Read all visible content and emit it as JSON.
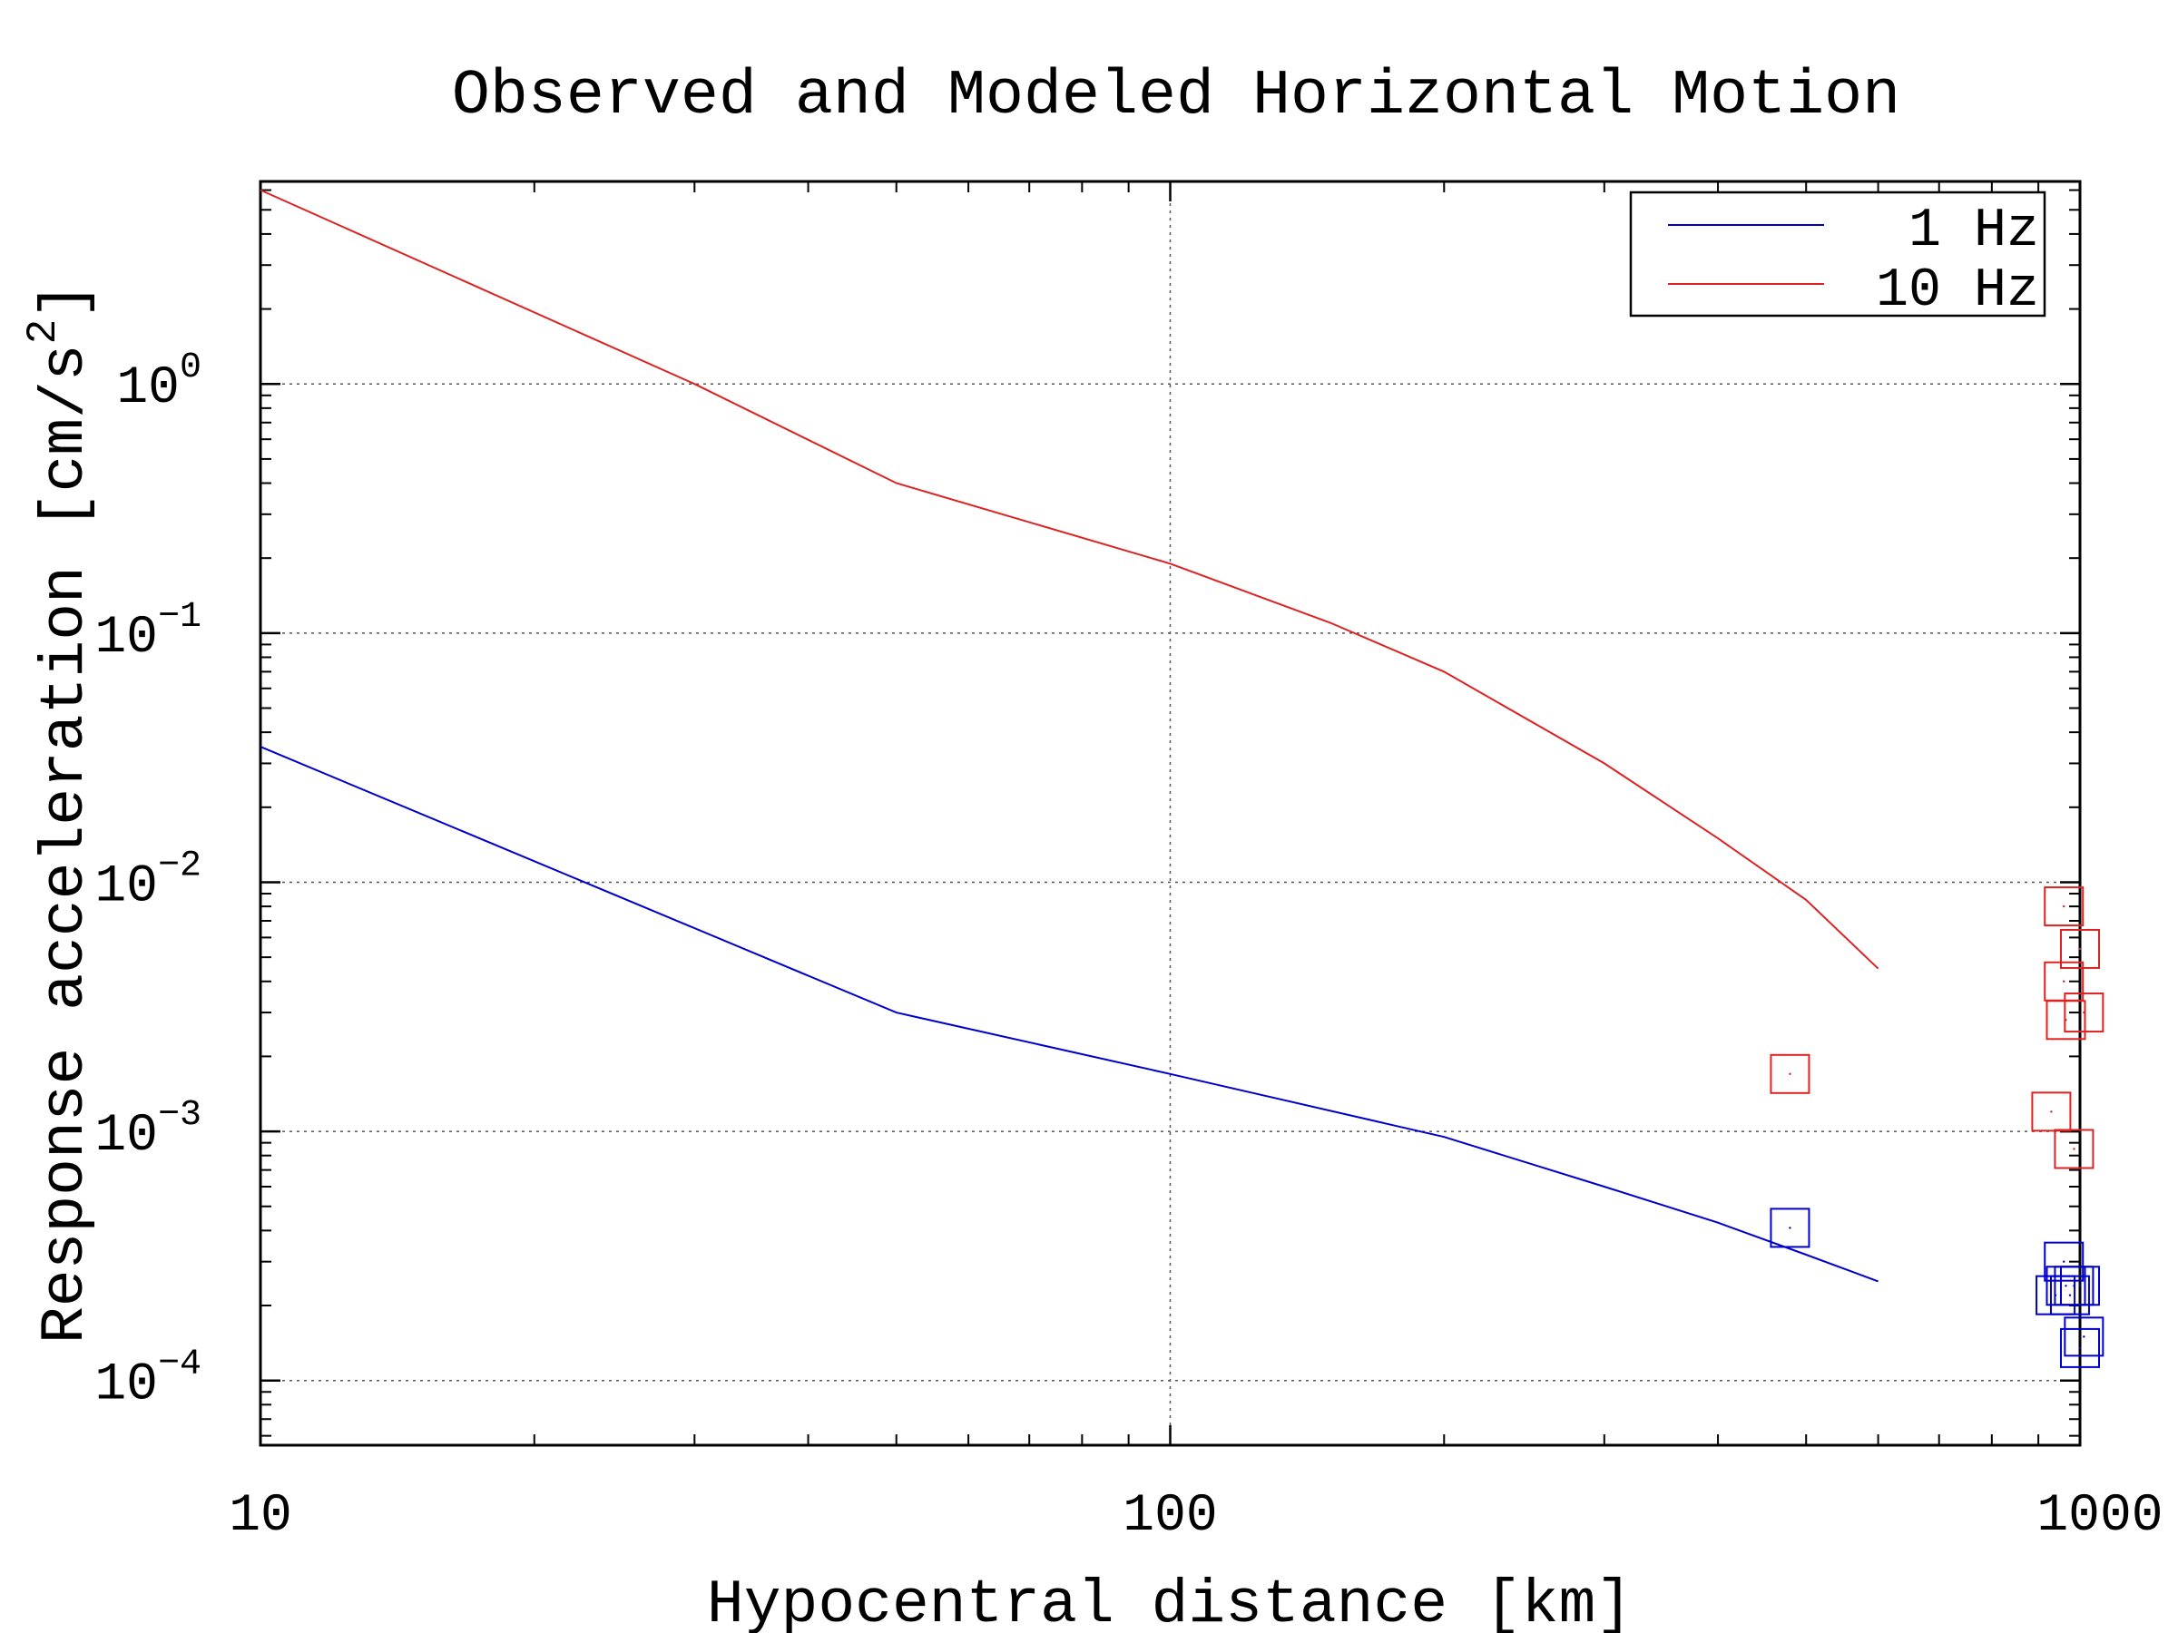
{
  "chart_data": {
    "type": "line",
    "title": "Observed and Modeled Horizontal Motion",
    "xlabel": "Hypocentral distance [km]",
    "ylabel": "Response acceleration [cm/s",
    "ylabel_sup": "2",
    "ylabel_end": "]",
    "xscale": "log",
    "yscale": "log",
    "xlim": [
      10,
      1000
    ],
    "ylim": [
      5.5e-05,
      6.5
    ],
    "x_ticks": [
      {
        "value": 10,
        "label": "10"
      },
      {
        "value": 100,
        "label": "100"
      },
      {
        "value": 1000,
        "label": "1000"
      }
    ],
    "y_ticks": [
      {
        "value": 1,
        "base": "10",
        "exp": "0"
      },
      {
        "value": 0.1,
        "base": "10",
        "exp": "−1"
      },
      {
        "value": 0.01,
        "base": "10",
        "exp": "−2"
      },
      {
        "value": 0.001,
        "base": "10",
        "exp": "−3"
      },
      {
        "value": 0.0001,
        "base": "10",
        "exp": "−4"
      }
    ],
    "grid": true,
    "legend_position": "top-right",
    "series": [
      {
        "name": "1 Hz",
        "color": "#0000cc",
        "x": [
          10,
          50,
          100,
          200,
          300,
          400,
          500,
          600
        ],
        "y": [
          0.035,
          0.003,
          0.0017,
          0.00095,
          0.0006,
          0.00043,
          0.00032,
          0.00025
        ],
        "observed": [
          {
            "x": 480,
            "y": 0.00041
          },
          {
            "x": 940,
            "y": 0.00022
          },
          {
            "x": 960,
            "y": 0.0003
          },
          {
            "x": 965,
            "y": 0.00024
          },
          {
            "x": 975,
            "y": 0.00022
          },
          {
            "x": 985,
            "y": 0.00024
          },
          {
            "x": 1000,
            "y": 0.00024
          },
          {
            "x": 1000,
            "y": 0.000135
          },
          {
            "x": 1010,
            "y": 0.00015
          }
        ]
      },
      {
        "name": "10 Hz",
        "color": "#dd2222",
        "x": [
          10,
          30,
          50,
          100,
          150,
          200,
          300,
          400,
          500,
          600
        ],
        "y": [
          6.0,
          1.0,
          0.4,
          0.19,
          0.11,
          0.07,
          0.03,
          0.015,
          0.0085,
          0.0045
        ],
        "observed": [
          {
            "x": 480,
            "y": 0.0017
          },
          {
            "x": 930,
            "y": 0.0012
          },
          {
            "x": 960,
            "y": 0.008
          },
          {
            "x": 960,
            "y": 0.004
          },
          {
            "x": 965,
            "y": 0.0028
          },
          {
            "x": 985,
            "y": 0.00085
          },
          {
            "x": 1000,
            "y": 0.0054
          },
          {
            "x": 1010,
            "y": 0.003
          }
        ]
      }
    ]
  }
}
